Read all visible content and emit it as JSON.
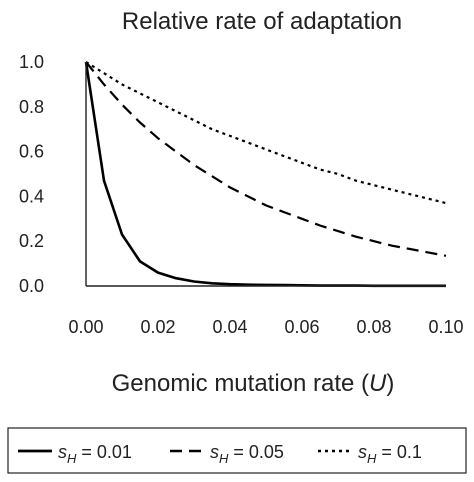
{
  "chart_data": {
    "type": "line",
    "title": "Relative rate of adaptation",
    "xlabel_prefix": "Genomic mutation rate (",
    "xlabel_var": "U",
    "xlabel_suffix": ")",
    "ylabel": "",
    "xlim": [
      0,
      0.1
    ],
    "ylim": [
      0,
      1.0
    ],
    "x_ticks": [
      "0.00",
      "0.02",
      "0.04",
      "0.06",
      "0.08",
      "0.10"
    ],
    "y_ticks": [
      "0.0",
      "0.2",
      "0.4",
      "0.6",
      "0.8",
      "1.0"
    ],
    "grid": false,
    "legend_position": "bottom",
    "x": [
      0,
      0.005,
      0.01,
      0.015,
      0.02,
      0.025,
      0.03,
      0.035,
      0.04,
      0.045,
      0.05,
      0.055,
      0.06,
      0.065,
      0.07,
      0.075,
      0.08,
      0.085,
      0.09,
      0.095,
      0.1
    ],
    "series": [
      {
        "legend_s": "s",
        "legend_sub": "H",
        "legend_value": " = 0.01",
        "dash": "solid",
        "values": [
          1.0,
          0.47,
          0.23,
          0.11,
          0.06,
          0.035,
          0.02,
          0.012,
          0.008,
          0.006,
          0.005,
          0.004,
          0.003,
          0.002,
          0.002,
          0.002,
          0.001,
          0.001,
          0.001,
          0.001,
          0.001
        ]
      },
      {
        "legend_s": "s",
        "legend_sub": "H",
        "legend_value": " = 0.05",
        "dash": "dashed",
        "values": [
          1.0,
          0.9,
          0.81,
          0.73,
          0.66,
          0.6,
          0.54,
          0.49,
          0.44,
          0.4,
          0.36,
          0.33,
          0.3,
          0.27,
          0.245,
          0.22,
          0.2,
          0.18,
          0.165,
          0.15,
          0.135
        ]
      },
      {
        "legend_s": "s",
        "legend_sub": "H",
        "legend_value": " = 0.1",
        "dash": "dotted",
        "values": [
          1.0,
          0.95,
          0.9,
          0.86,
          0.82,
          0.78,
          0.74,
          0.7,
          0.67,
          0.64,
          0.61,
          0.58,
          0.55,
          0.52,
          0.5,
          0.47,
          0.45,
          0.43,
          0.41,
          0.39,
          0.37
        ]
      }
    ],
    "line_color": "#000000"
  }
}
